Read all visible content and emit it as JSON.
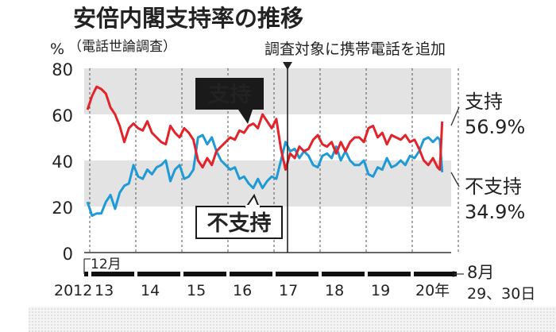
{
  "chart_data": {
    "type": "line",
    "title": "安倍内閣支持率の推移",
    "subtitle": "（電話世論調査）",
    "unit_label": "%",
    "annotation": "調査対象に携帯電話を追加",
    "ylim": [
      0,
      80
    ],
    "y_ticks": [
      "80",
      "60",
      "40",
      "20",
      "0"
    ],
    "x_start_label": "2012",
    "x_start_month": "12月",
    "x_year_labels": [
      "13",
      "14",
      "15",
      "16",
      "17",
      "18",
      "19",
      "20年"
    ],
    "x_end_labels": [
      "8月",
      "29、30日"
    ],
    "series": [
      {
        "name": "支持",
        "color": "#e2232a",
        "end_value_label": "56.9%",
        "x": [
          2012.95,
          2013.05,
          2013.15,
          2013.25,
          2013.35,
          2013.45,
          2013.55,
          2013.65,
          2013.75,
          2013.85,
          2013.95,
          2014.05,
          2014.15,
          2014.25,
          2014.35,
          2014.45,
          2014.55,
          2014.65,
          2014.75,
          2014.85,
          2014.95,
          2015.05,
          2015.15,
          2015.25,
          2015.35,
          2015.45,
          2015.55,
          2015.65,
          2015.75,
          2015.85,
          2015.95,
          2016.05,
          2016.15,
          2016.25,
          2016.35,
          2016.45,
          2016.55,
          2016.65,
          2016.75,
          2016.85,
          2016.95,
          2017.05,
          2017.15,
          2017.25,
          2017.35,
          2017.45,
          2017.55,
          2017.65,
          2017.75,
          2017.85,
          2017.95,
          2018.05,
          2018.15,
          2018.25,
          2018.35,
          2018.45,
          2018.55,
          2018.65,
          2018.75,
          2018.85,
          2018.95,
          2019.05,
          2019.15,
          2019.25,
          2019.35,
          2019.45,
          2019.55,
          2019.65,
          2019.75,
          2019.85,
          2019.95,
          2020.05,
          2020.15,
          2020.25,
          2020.35,
          2020.45,
          2020.55,
          2020.6,
          2020.65
        ],
        "values": [
          62,
          68,
          72,
          71,
          69,
          63,
          60,
          55,
          48,
          54,
          56,
          54,
          53,
          57,
          52,
          50,
          48,
          47,
          55,
          52,
          50,
          54,
          52,
          49,
          40,
          37,
          41,
          38,
          44,
          46,
          48,
          50,
          49,
          53,
          52,
          55,
          56,
          54,
          60,
          57,
          54,
          58,
          45,
          36,
          43,
          41,
          46,
          44,
          45,
          49,
          51,
          47,
          46,
          48,
          43,
          48,
          44,
          48,
          50,
          50,
          48,
          54,
          55,
          50,
          52,
          47,
          51,
          50,
          49,
          51,
          48,
          49,
          45,
          40,
          38,
          41,
          37,
          36,
          56.9
        ]
      },
      {
        "name": "不支持",
        "color": "#1e9ad6",
        "end_value_label": "34.9%",
        "x": [
          2012.95,
          2013.05,
          2013.15,
          2013.25,
          2013.35,
          2013.45,
          2013.55,
          2013.65,
          2013.75,
          2013.85,
          2013.95,
          2014.05,
          2014.15,
          2014.25,
          2014.35,
          2014.45,
          2014.55,
          2014.65,
          2014.75,
          2014.85,
          2014.95,
          2015.05,
          2015.15,
          2015.25,
          2015.35,
          2015.45,
          2015.55,
          2015.65,
          2015.75,
          2015.85,
          2015.95,
          2016.05,
          2016.15,
          2016.25,
          2016.35,
          2016.45,
          2016.55,
          2016.65,
          2016.75,
          2016.85,
          2016.95,
          2017.05,
          2017.15,
          2017.25,
          2017.35,
          2017.45,
          2017.55,
          2017.65,
          2017.75,
          2017.85,
          2017.95,
          2018.05,
          2018.15,
          2018.25,
          2018.35,
          2018.45,
          2018.55,
          2018.65,
          2018.75,
          2018.85,
          2018.95,
          2019.05,
          2019.15,
          2019.25,
          2019.35,
          2019.45,
          2019.55,
          2019.65,
          2019.75,
          2019.85,
          2019.95,
          2020.05,
          2020.15,
          2020.25,
          2020.35,
          2020.45,
          2020.55,
          2020.6,
          2020.65
        ],
        "values": [
          22,
          16,
          17,
          17,
          22,
          25,
          19,
          26,
          29,
          30,
          38,
          33,
          32,
          36,
          34,
          37,
          38,
          40,
          31,
          36,
          38,
          32,
          33,
          36,
          50,
          51,
          47,
          50,
          44,
          40,
          38,
          36,
          37,
          32,
          33,
          30,
          28,
          32,
          28,
          31,
          33,
          32,
          40,
          48,
          44,
          45,
          41,
          44,
          42,
          38,
          37,
          42,
          43,
          41,
          46,
          40,
          44,
          40,
          38,
          38,
          40,
          34,
          33,
          37,
          36,
          41,
          37,
          38,
          40,
          38,
          42,
          41,
          44,
          49,
          50,
          48,
          50,
          49,
          34.9
        ]
      }
    ],
    "inline_labels": [
      "支持",
      "不支持"
    ]
  }
}
